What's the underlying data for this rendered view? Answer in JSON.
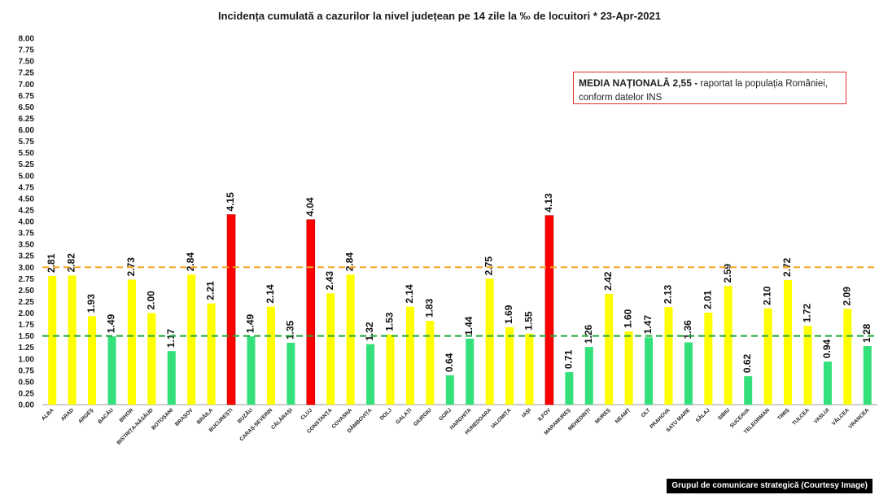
{
  "title": "Incidența cumulată a cazurilor la nivel județean pe 14 zile la ‰ de locuitori *   23-Apr-2021",
  "note": {
    "bold": "MEDIA NAȚIONALĂ  2,55 -",
    "rest": " raportat la populația României, conform datelor INS"
  },
  "credit": "Grupul de comunicare strategică (Courtesy Image)",
  "colors": {
    "red": "#ff0000",
    "yellow": "#ffff00",
    "green": "#33e07a",
    "line_orange": "#f5a623",
    "line_green": "#1fa83a"
  },
  "chart_data": {
    "type": "bar",
    "categories": [
      "ALBA",
      "ARAD",
      "ARGEȘ",
      "BACĂU",
      "BIHOR",
      "BISTRIȚA-NĂSĂUD",
      "BOTOȘANI",
      "BRAȘOV",
      "BRĂILA",
      "BUCUREȘTI",
      "BUZĂU",
      "CARAȘ-SEVERIN",
      "CĂLĂRAȘI",
      "CLUJ",
      "CONSTANȚA",
      "COVASNA",
      "DÂMBOVIȚA",
      "DOLJ",
      "GALAȚI",
      "GIURGIU",
      "GORJ",
      "HARGHITA",
      "HUNEDOARA",
      "IALOMIȚA",
      "IAȘI",
      "ILFOV",
      "MARAMUREȘ",
      "MEHEDINȚI",
      "MUREȘ",
      "NEAMȚ",
      "OLT",
      "PRAHOVA",
      "SATU MARE",
      "SĂLAJ",
      "SIBIU",
      "SUCEAVA",
      "TELEORMAN",
      "TIMIȘ",
      "TULCEA",
      "VASLUI",
      "VÂLCEA",
      "VRANCEA"
    ],
    "values": [
      2.81,
      2.82,
      1.93,
      1.49,
      2.73,
      2.0,
      1.17,
      2.84,
      2.21,
      4.15,
      1.49,
      2.14,
      1.35,
      4.04,
      2.43,
      2.84,
      1.32,
      1.53,
      2.14,
      1.83,
      0.64,
      1.44,
      2.75,
      1.69,
      1.55,
      4.13,
      0.71,
      1.26,
      2.42,
      1.6,
      1.47,
      2.13,
      1.36,
      2.01,
      2.59,
      0.62,
      2.1,
      2.72,
      1.72,
      0.94,
      2.09,
      1.28
    ],
    "value_labels": [
      "2.81",
      "2.82",
      "1.93",
      "1.49",
      "2.73",
      "2.00",
      "1.17",
      "2.84",
      "2.21",
      "4.15",
      "1.49",
      "2.14",
      "1.35",
      "4.04",
      "2.43",
      "2.84",
      "1.32",
      "1.53",
      "2.14",
      "1.83",
      "0.64",
      "1.44",
      "2.75",
      "1.69",
      "1.55",
      "4.13",
      "0.71",
      "1.26",
      "2.42",
      "1.60",
      "1.47",
      "2.13",
      "1.36",
      "2.01",
      "2.59",
      "0.62",
      "2.10",
      "2.72",
      "1.72",
      "0.94",
      "2.09",
      "1.28"
    ],
    "bar_colors": [
      "yellow",
      "yellow",
      "yellow",
      "green",
      "yellow",
      "yellow",
      "green",
      "yellow",
      "yellow",
      "red",
      "green",
      "yellow",
      "green",
      "red",
      "yellow",
      "yellow",
      "green",
      "yellow",
      "yellow",
      "yellow",
      "green",
      "green",
      "yellow",
      "yellow",
      "yellow",
      "red",
      "green",
      "green",
      "yellow",
      "yellow",
      "green",
      "yellow",
      "green",
      "yellow",
      "yellow",
      "green",
      "yellow",
      "yellow",
      "yellow",
      "green",
      "yellow",
      "green"
    ],
    "y_ticks": [
      "0.00",
      "0.25",
      "0.50",
      "0.75",
      "1.00",
      "1.25",
      "1.50",
      "1.75",
      "2.00",
      "2.25",
      "2.50",
      "2.75",
      "3.00",
      "3.25",
      "3.50",
      "3.75",
      "4.00",
      "4.25",
      "4.50",
      "4.75",
      "5.00",
      "5.25",
      "5.50",
      "5.75",
      "6.00",
      "6.25",
      "6.50",
      "6.75",
      "7.00",
      "7.25",
      "7.50",
      "7.75",
      "8.00"
    ],
    "ylim": [
      0,
      8
    ],
    "reference_lines": [
      {
        "value": 3.0,
        "style": "dashed",
        "color": "orange"
      },
      {
        "value": 1.5,
        "style": "dashed",
        "color": "green"
      }
    ],
    "grid": false
  }
}
